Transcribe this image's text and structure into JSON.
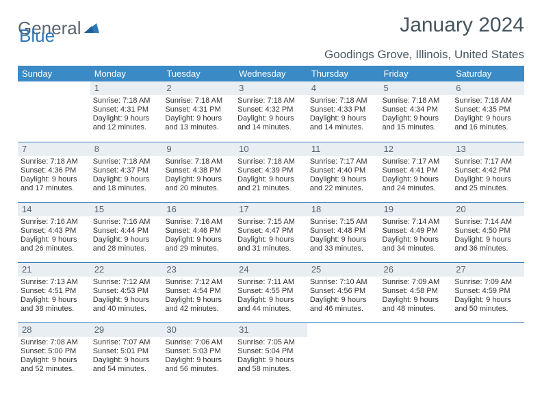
{
  "brand": {
    "part1": "General",
    "part2": "Blue"
  },
  "title": "January 2024",
  "location": "Goodings Grove, Illinois, United States",
  "colors": {
    "header_bg": "#3a8ac6",
    "rule": "#2f78b7",
    "daynum_bg": "#e9eef2",
    "text_muted": "#455560"
  },
  "fonts": {
    "title_size": 30,
    "location_size": 17,
    "header_size": 13,
    "body_size": 11
  },
  "dayNames": [
    "Sunday",
    "Monday",
    "Tuesday",
    "Wednesday",
    "Thursday",
    "Friday",
    "Saturday"
  ],
  "weeks": [
    [
      {
        "n": "",
        "sunrise": "",
        "sunset": "",
        "daylight": ""
      },
      {
        "n": "1",
        "sunrise": "7:18 AM",
        "sunset": "4:31 PM",
        "daylight": "9 hours and 12 minutes."
      },
      {
        "n": "2",
        "sunrise": "7:18 AM",
        "sunset": "4:31 PM",
        "daylight": "9 hours and 13 minutes."
      },
      {
        "n": "3",
        "sunrise": "7:18 AM",
        "sunset": "4:32 PM",
        "daylight": "9 hours and 14 minutes."
      },
      {
        "n": "4",
        "sunrise": "7:18 AM",
        "sunset": "4:33 PM",
        "daylight": "9 hours and 14 minutes."
      },
      {
        "n": "5",
        "sunrise": "7:18 AM",
        "sunset": "4:34 PM",
        "daylight": "9 hours and 15 minutes."
      },
      {
        "n": "6",
        "sunrise": "7:18 AM",
        "sunset": "4:35 PM",
        "daylight": "9 hours and 16 minutes."
      }
    ],
    [
      {
        "n": "7",
        "sunrise": "7:18 AM",
        "sunset": "4:36 PM",
        "daylight": "9 hours and 17 minutes."
      },
      {
        "n": "8",
        "sunrise": "7:18 AM",
        "sunset": "4:37 PM",
        "daylight": "9 hours and 18 minutes."
      },
      {
        "n": "9",
        "sunrise": "7:18 AM",
        "sunset": "4:38 PM",
        "daylight": "9 hours and 20 minutes."
      },
      {
        "n": "10",
        "sunrise": "7:18 AM",
        "sunset": "4:39 PM",
        "daylight": "9 hours and 21 minutes."
      },
      {
        "n": "11",
        "sunrise": "7:17 AM",
        "sunset": "4:40 PM",
        "daylight": "9 hours and 22 minutes."
      },
      {
        "n": "12",
        "sunrise": "7:17 AM",
        "sunset": "4:41 PM",
        "daylight": "9 hours and 24 minutes."
      },
      {
        "n": "13",
        "sunrise": "7:17 AM",
        "sunset": "4:42 PM",
        "daylight": "9 hours and 25 minutes."
      }
    ],
    [
      {
        "n": "14",
        "sunrise": "7:16 AM",
        "sunset": "4:43 PM",
        "daylight": "9 hours and 26 minutes."
      },
      {
        "n": "15",
        "sunrise": "7:16 AM",
        "sunset": "4:44 PM",
        "daylight": "9 hours and 28 minutes."
      },
      {
        "n": "16",
        "sunrise": "7:16 AM",
        "sunset": "4:46 PM",
        "daylight": "9 hours and 29 minutes."
      },
      {
        "n": "17",
        "sunrise": "7:15 AM",
        "sunset": "4:47 PM",
        "daylight": "9 hours and 31 minutes."
      },
      {
        "n": "18",
        "sunrise": "7:15 AM",
        "sunset": "4:48 PM",
        "daylight": "9 hours and 33 minutes."
      },
      {
        "n": "19",
        "sunrise": "7:14 AM",
        "sunset": "4:49 PM",
        "daylight": "9 hours and 34 minutes."
      },
      {
        "n": "20",
        "sunrise": "7:14 AM",
        "sunset": "4:50 PM",
        "daylight": "9 hours and 36 minutes."
      }
    ],
    [
      {
        "n": "21",
        "sunrise": "7:13 AM",
        "sunset": "4:51 PM",
        "daylight": "9 hours and 38 minutes."
      },
      {
        "n": "22",
        "sunrise": "7:12 AM",
        "sunset": "4:53 PM",
        "daylight": "9 hours and 40 minutes."
      },
      {
        "n": "23",
        "sunrise": "7:12 AM",
        "sunset": "4:54 PM",
        "daylight": "9 hours and 42 minutes."
      },
      {
        "n": "24",
        "sunrise": "7:11 AM",
        "sunset": "4:55 PM",
        "daylight": "9 hours and 44 minutes."
      },
      {
        "n": "25",
        "sunrise": "7:10 AM",
        "sunset": "4:56 PM",
        "daylight": "9 hours and 46 minutes."
      },
      {
        "n": "26",
        "sunrise": "7:09 AM",
        "sunset": "4:58 PM",
        "daylight": "9 hours and 48 minutes."
      },
      {
        "n": "27",
        "sunrise": "7:09 AM",
        "sunset": "4:59 PM",
        "daylight": "9 hours and 50 minutes."
      }
    ],
    [
      {
        "n": "28",
        "sunrise": "7:08 AM",
        "sunset": "5:00 PM",
        "daylight": "9 hours and 52 minutes."
      },
      {
        "n": "29",
        "sunrise": "7:07 AM",
        "sunset": "5:01 PM",
        "daylight": "9 hours and 54 minutes."
      },
      {
        "n": "30",
        "sunrise": "7:06 AM",
        "sunset": "5:03 PM",
        "daylight": "9 hours and 56 minutes."
      },
      {
        "n": "31",
        "sunrise": "7:05 AM",
        "sunset": "5:04 PM",
        "daylight": "9 hours and 58 minutes."
      },
      {
        "n": "",
        "sunrise": "",
        "sunset": "",
        "daylight": ""
      },
      {
        "n": "",
        "sunrise": "",
        "sunset": "",
        "daylight": ""
      },
      {
        "n": "",
        "sunrise": "",
        "sunset": "",
        "daylight": ""
      }
    ]
  ],
  "labels": {
    "sunrise": "Sunrise:",
    "sunset": "Sunset:",
    "daylight": "Daylight:"
  }
}
